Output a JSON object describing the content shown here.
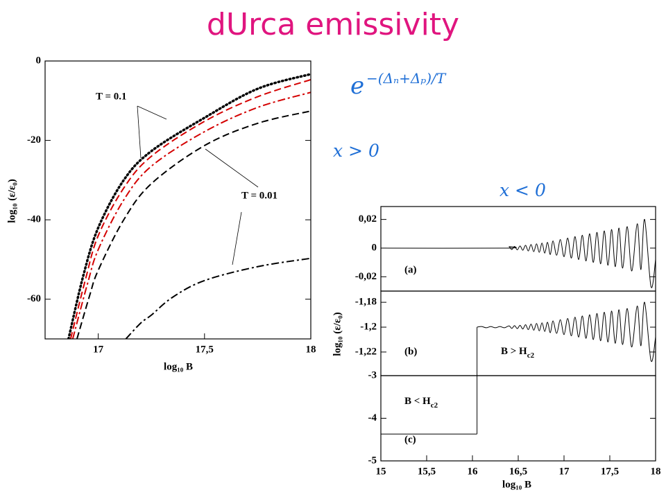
{
  "title": "dUrca emissivity",
  "formulas": {
    "exp": {
      "base": "e",
      "exponent": "−(Δₙ+Δₚ)/T"
    },
    "positive": "𝑥 > 0",
    "negative": "𝑥 < 0"
  },
  "chart_data": [
    {
      "type": "line",
      "xlabel": "log₁₀ B",
      "ylabel": "log₁₀ (ε/ε₀)",
      "xlim": [
        16.75,
        18
      ],
      "ylim": [
        -70,
        0
      ],
      "xticks": [
        17,
        {
          "value": 17.5,
          "label": "17,5"
        },
        18
      ],
      "yticks": [
        0,
        -20,
        -40,
        -60
      ],
      "annotations": [
        "T = 0.1",
        "T = 0.01"
      ],
      "series": [
        {
          "color": "#000000",
          "dash": "dotted",
          "x": [
            16.86,
            16.93,
            17,
            17.12,
            17.25,
            17.5,
            17.75,
            18
          ],
          "values": [
            -70,
            -54,
            -42,
            -30,
            -22.7,
            -14.3,
            -7,
            -3.3
          ]
        },
        {
          "color": "#d40000",
          "dash": "dashed",
          "x": [
            16.87,
            16.94,
            17,
            17.12,
            17.25,
            17.5,
            17.75,
            18
          ],
          "values": [
            -70,
            -55,
            -44,
            -32,
            -24,
            -15.2,
            -9,
            -4.7
          ]
        },
        {
          "color": "#d40000",
          "dash": "dashdot",
          "x": [
            16.88,
            16.95,
            17,
            17.12,
            17.25,
            17.5,
            17.75,
            18
          ],
          "values": [
            -70,
            -56,
            -47.5,
            -35,
            -26.5,
            -17.8,
            -11.7,
            -7.9
          ]
        },
        {
          "color": "#000000",
          "dash": "dashed",
          "x": [
            16.9,
            16.96,
            17,
            17.12,
            17.25,
            17.5,
            17.75,
            18
          ],
          "values": [
            -70,
            -59,
            -52.7,
            -40,
            -30.9,
            -21.3,
            -15.7,
            -12.6
          ]
        },
        {
          "color": "#000000",
          "dash": "dashdot",
          "x": [
            17.13,
            17.2,
            17.25,
            17.35,
            17.5,
            17.75,
            18
          ],
          "values": [
            -70,
            -66,
            -64,
            -59.5,
            -55.3,
            -51.8,
            -49.7
          ]
        }
      ]
    },
    {
      "type": "line",
      "xlim": [
        15,
        18
      ],
      "ylim": [
        -0.03,
        0.029
      ],
      "yticks": [
        {
          "value": 0.02,
          "label": "0,02"
        },
        0,
        {
          "value": -0.02,
          "label": "-0,02"
        }
      ],
      "annotations": [
        "(a)"
      ],
      "series": [
        {
          "color": "#000000",
          "dash": "solid",
          "x": [
            15,
            16.37,
            16.4,
            16.43,
            16.46,
            16.49,
            16.52,
            16.55,
            16.58,
            16.61,
            16.64,
            16.67,
            16.7,
            16.73,
            16.76,
            16.79,
            16.82,
            16.85,
            16.88,
            16.92,
            16.96,
            17,
            17.04,
            17.08,
            17.12,
            17.16,
            17.2,
            17.24,
            17.28,
            17.32,
            17.36,
            17.4,
            17.44,
            17.48,
            17.52,
            17.56,
            17.6,
            17.64,
            17.69,
            17.74,
            17.8,
            17.84,
            17.88,
            17.95,
            18
          ],
          "values": [
            0,
            0,
            0.001,
            -0.001,
            0.0012,
            -0.0012,
            0.0015,
            -0.0015,
            0.002,
            -0.002,
            0.0025,
            -0.0025,
            0.003,
            -0.003,
            0.0035,
            -0.0035,
            0.004,
            -0.0045,
            0.005,
            -0.005,
            0.006,
            -0.006,
            0.007,
            -0.007,
            0.008,
            -0.008,
            0.009,
            -0.009,
            0.01,
            -0.01,
            0.011,
            -0.011,
            0.012,
            -0.012,
            0.013,
            -0.013,
            0.014,
            -0.014,
            0.015,
            -0.016,
            0.017,
            -0.015,
            0.02,
            -0.027,
            -0.008
          ]
        }
      ]
    },
    {
      "type": "line",
      "xlim": [
        15,
        18
      ],
      "ylim": [
        -1.239,
        -1.171
      ],
      "ylabel": "log₁₀ (ε/ε₀)",
      "yticks": [
        {
          "value": -1.18,
          "label": "-1,18"
        },
        {
          "value": -1.2,
          "label": "-1,2"
        },
        {
          "value": -1.22,
          "label": "-1,22"
        }
      ],
      "annotations": [
        "(b)",
        {
          "text": "B > H",
          "sub": "c2"
        }
      ],
      "series": [
        {
          "color": "#000000",
          "dash": "solid",
          "x": [
            16.05,
            16.1,
            16.15,
            16.2,
            16.25,
            16.3,
            16.35,
            16.4,
            16.43,
            16.46,
            16.49,
            16.52,
            16.55,
            16.58,
            16.61,
            16.64,
            16.67,
            16.7,
            16.73,
            16.76,
            16.79,
            16.82,
            16.85,
            16.88,
            16.92,
            16.96,
            17,
            17.04,
            17.08,
            17.12,
            17.16,
            17.2,
            17.24,
            17.28,
            17.32,
            17.36,
            17.4,
            17.44,
            17.48,
            17.52,
            17.56,
            17.6,
            17.64,
            17.69,
            17.74,
            17.8,
            17.84,
            17.88,
            17.95,
            18
          ],
          "values": [
            -1.2,
            -1.1995,
            -1.2005,
            -1.1995,
            -1.2005,
            -1.1995,
            -1.2005,
            -1.199,
            -1.201,
            -1.1988,
            -1.2012,
            -1.1985,
            -1.2015,
            -1.198,
            -1.202,
            -1.1975,
            -1.2025,
            -1.197,
            -1.203,
            -1.1965,
            -1.2035,
            -1.196,
            -1.2045,
            -1.195,
            -1.205,
            -1.194,
            -1.206,
            -1.193,
            -1.207,
            -1.192,
            -1.208,
            -1.191,
            -1.209,
            -1.19,
            -1.21,
            -1.189,
            -1.211,
            -1.188,
            -1.212,
            -1.187,
            -1.213,
            -1.186,
            -1.214,
            -1.185,
            -1.216,
            -1.183,
            -1.215,
            -1.18,
            -1.227,
            -1.208
          ]
        }
      ]
    },
    {
      "type": "line",
      "xlim": [
        15,
        18
      ],
      "ylim": [
        -5,
        -3
      ],
      "xlabel": "log₁₀ B",
      "xticks": [
        15,
        {
          "value": 15.5,
          "label": "15,5"
        },
        16,
        {
          "value": 16.5,
          "label": "16,5"
        },
        17,
        {
          "value": 17.5,
          "label": "17,5"
        },
        18
      ],
      "yticks": [
        -3,
        -4,
        -5
      ],
      "annotations": [
        "(c)",
        {
          "text": "B < H",
          "sub": "c2"
        }
      ],
      "series": [
        {
          "color": "#000000",
          "dash": "solid",
          "x": [
            15,
            16.05
          ],
          "values": [
            -4.37,
            -4.37
          ]
        }
      ]
    }
  ]
}
